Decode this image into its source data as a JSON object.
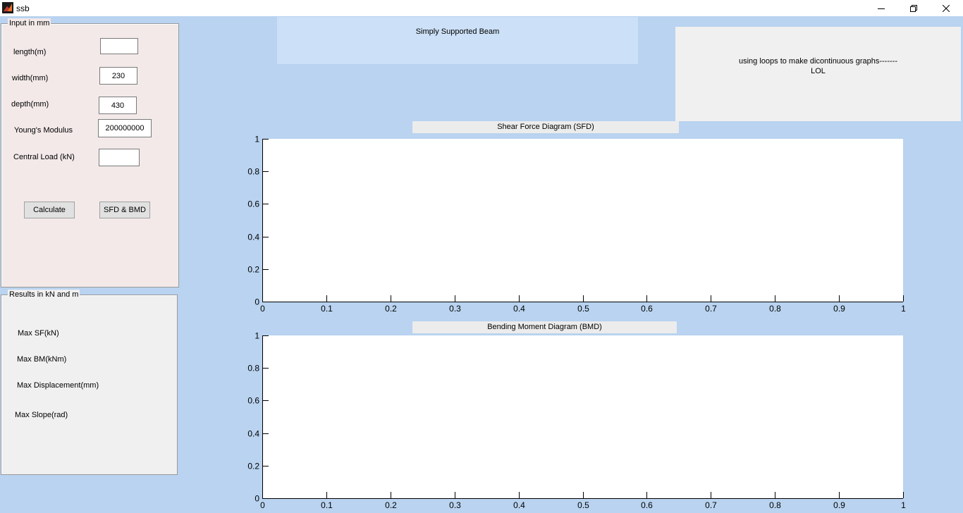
{
  "window": {
    "title": "ssb"
  },
  "input_panel": {
    "title": "Input in mm",
    "length_label": "length(m)",
    "length_value": "",
    "width_label": "width(mm)",
    "width_value": "230",
    "depth_label": "depth(mm)",
    "depth_value": "430",
    "youngs_label": "Young's Modulus",
    "youngs_value": "200000000",
    "load_label": "Central Load (kN)",
    "load_value": "",
    "calculate_label": "Calculate",
    "sfd_bmd_label": "SFD & BMD"
  },
  "results_panel": {
    "title": "Results in kN and m",
    "max_sf_label": "Max SF(kN)",
    "max_bm_label": "Max BM(kNm)",
    "max_disp_label": "Max Displacement(mm)",
    "max_slope_label": "Max Slope(rad)"
  },
  "header_label": "Simply Supported Beam",
  "note": {
    "line1": "using loops to make dicontinuous graphs-------",
    "line2": "LOL"
  },
  "colors": {
    "background": "#b9d3f0",
    "input_panel": "#f3e9e9",
    "results_panel": "#f0f0f0",
    "header_box": "#cce0f7"
  },
  "chart_data": [
    {
      "type": "line",
      "title": "Shear Force Diagram (SFD)",
      "series": [],
      "xlim": [
        0,
        1
      ],
      "ylim": [
        0,
        1
      ],
      "x_ticks": [
        "0",
        "0.1",
        "0.2",
        "0.3",
        "0.4",
        "0.5",
        "0.6",
        "0.7",
        "0.8",
        "0.9",
        "1"
      ],
      "y_ticks": [
        "0",
        "0.2",
        "0.4",
        "0.6",
        "0.8",
        "1"
      ],
      "grid": false
    },
    {
      "type": "line",
      "title": "Bending Moment Diagram (BMD)",
      "series": [],
      "xlim": [
        0,
        1
      ],
      "ylim": [
        0,
        1
      ],
      "x_ticks": [
        "0",
        "0.1",
        "0.2",
        "0.3",
        "0.4",
        "0.5",
        "0.6",
        "0.7",
        "0.8",
        "0.9",
        "1"
      ],
      "y_ticks": [
        "0",
        "0.2",
        "0.4",
        "0.6",
        "0.8",
        "1"
      ],
      "grid": false
    }
  ]
}
